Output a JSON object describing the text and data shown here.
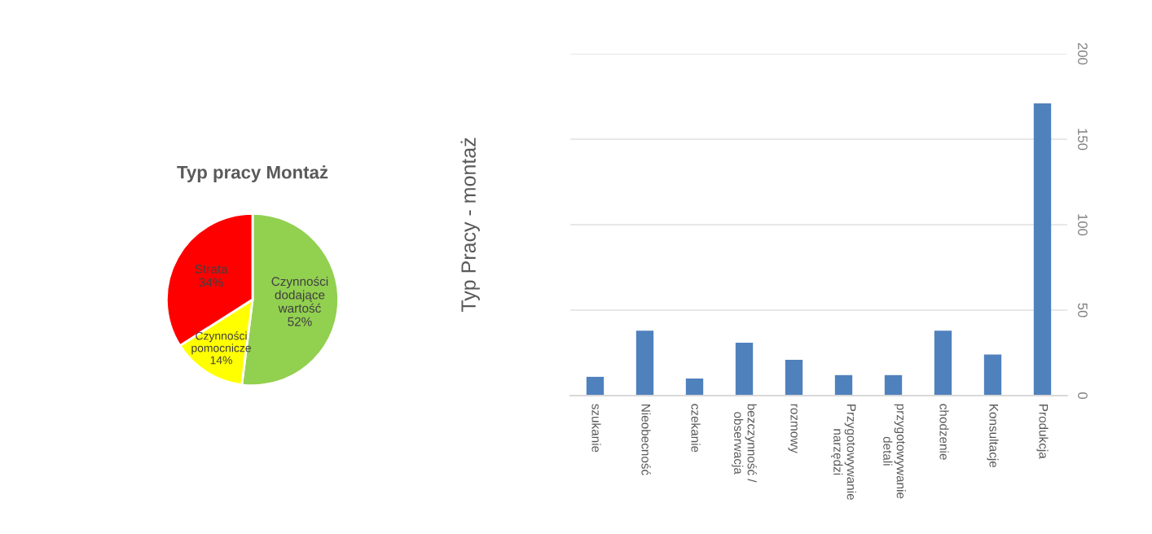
{
  "chart_data": [
    {
      "type": "pie",
      "title": "Typ pracy Montaż",
      "categories": [
        "Czynności dodające wartość",
        "Czynności pomocnicze",
        "Strata"
      ],
      "values": [
        52,
        14,
        34
      ],
      "colors": [
        "#92d050",
        "#ffff00",
        "#ff0000"
      ],
      "value_labels": [
        "52%",
        "14%",
        "34%"
      ],
      "legend": false
    },
    {
      "type": "bar",
      "ylabel": "Typ Pracy - montaż",
      "categories": [
        "szukanie",
        "Nieobecność",
        "czekanie",
        "bezczynność / obserwacja",
        "rozmowy",
        "Przygotowywanie narzędzi",
        "przygotowywanie detali",
        "chodzenie",
        "Konsultacje",
        "Produkcja"
      ],
      "series": [
        {
          "color": "#4f81bd",
          "values": [
            11,
            38,
            10,
            31,
            21,
            12,
            12,
            38,
            24,
            171
          ]
        }
      ],
      "ylim": [
        0,
        200
      ],
      "yticks": [
        0,
        50,
        100,
        150,
        200
      ],
      "grid": "y",
      "legend": false
    }
  ]
}
